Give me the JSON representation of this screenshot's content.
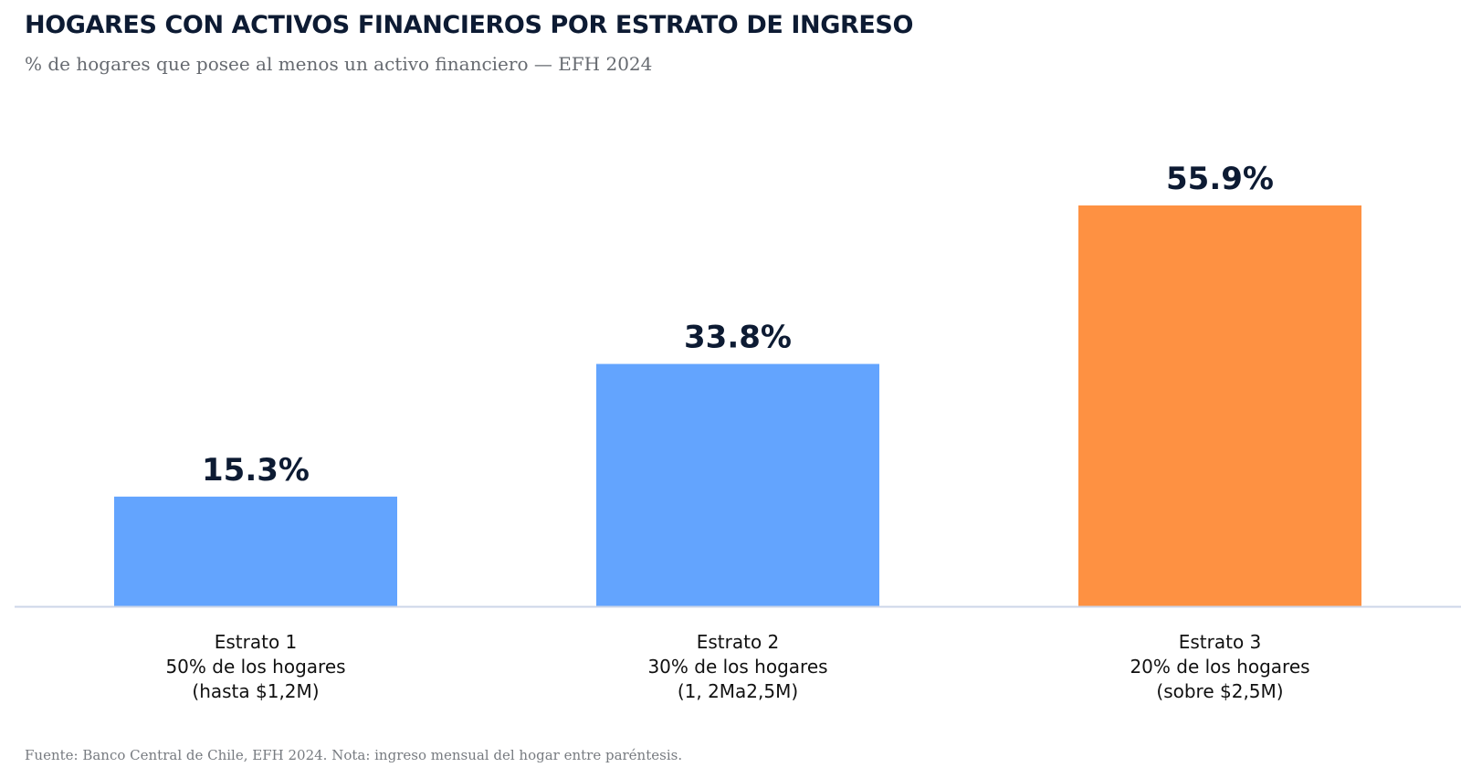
{
  "chart_data": {
    "type": "bar",
    "title": "HOGARES CON ACTIVOS FINANCIEROS POR ESTRATO DE INGRESO",
    "subtitle": "% de hogares que posee al menos un activo financiero — EFH 2024",
    "xlabel": "",
    "ylabel": "",
    "ylim": [
      0,
      55.9
    ],
    "grid": false,
    "unit": "%",
    "categories": [
      [
        "Estrato 1",
        "50% de los hogares",
        "(hasta $1,2M)"
      ],
      [
        "Estrato 2",
        "30% de los hogares",
        "(1, 2Ma2,5M)"
      ],
      [
        "Estrato 3",
        "20% de los hogares",
        "(sobre $2,5M)"
      ]
    ],
    "values": [
      15.3,
      33.8,
      55.9
    ],
    "value_labels": [
      "15.3%",
      "33.8%",
      "55.9%"
    ],
    "colors": [
      "#63a4fe",
      "#63a4fe",
      "#fe9142"
    ],
    "label_color": "#0d1b33",
    "baseline_color": "#ccd6e8"
  },
  "footer": "Fuente: Banco Central de Chile, EFH 2024. Nota: ingreso mensual del hogar entre paréntesis."
}
